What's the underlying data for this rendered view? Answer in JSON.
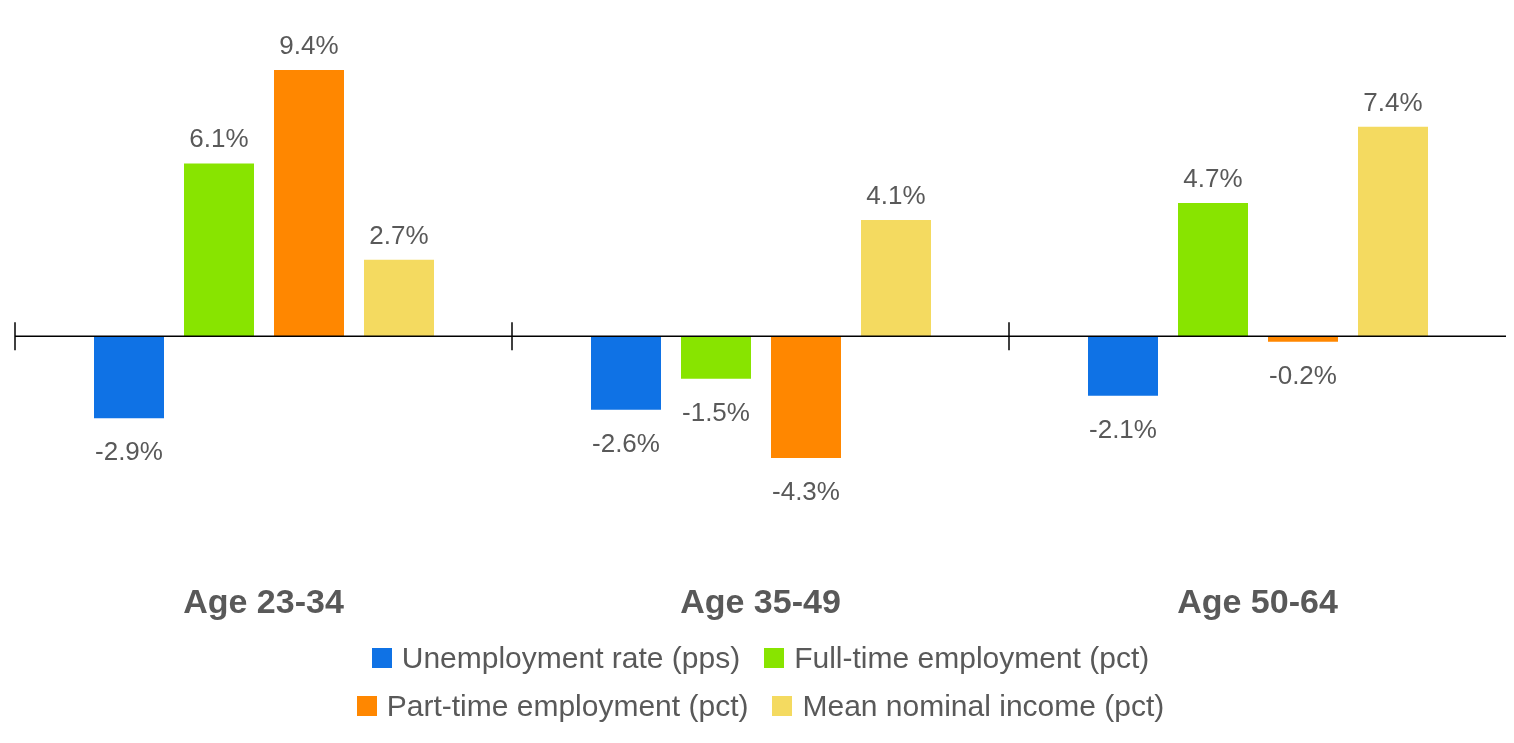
{
  "chart_data": {
    "type": "bar",
    "categories": [
      "Age 23-34",
      "Age 35-49",
      "Age 50-64"
    ],
    "series": [
      {
        "name": "Unemployment rate (pps)",
        "color": "#0f72e5",
        "values": [
          -2.9,
          -2.6,
          -2.1
        ],
        "value_labels": [
          "-2.9%",
          "-2.6%",
          "-2.1%"
        ]
      },
      {
        "name": "Full-time employment (pct)",
        "color": "#88e400",
        "values": [
          6.1,
          -1.5,
          4.7
        ],
        "value_labels": [
          "6.1%",
          "-1.5%",
          "4.7%"
        ]
      },
      {
        "name": "Part-time employment (pct)",
        "color": "#ff8700",
        "values": [
          9.4,
          -4.3,
          -0.2
        ],
        "value_labels": [
          "9.4%",
          "-4.3%",
          "-0.2%"
        ]
      },
      {
        "name": "Mean nominal income (pct)",
        "color": "#f4da60",
        "values": [
          2.7,
          4.1,
          7.4
        ],
        "value_labels": [
          "2.7%",
          "4.1%",
          "7.4%"
        ]
      }
    ],
    "legend": "bottom",
    "grid": false
  }
}
